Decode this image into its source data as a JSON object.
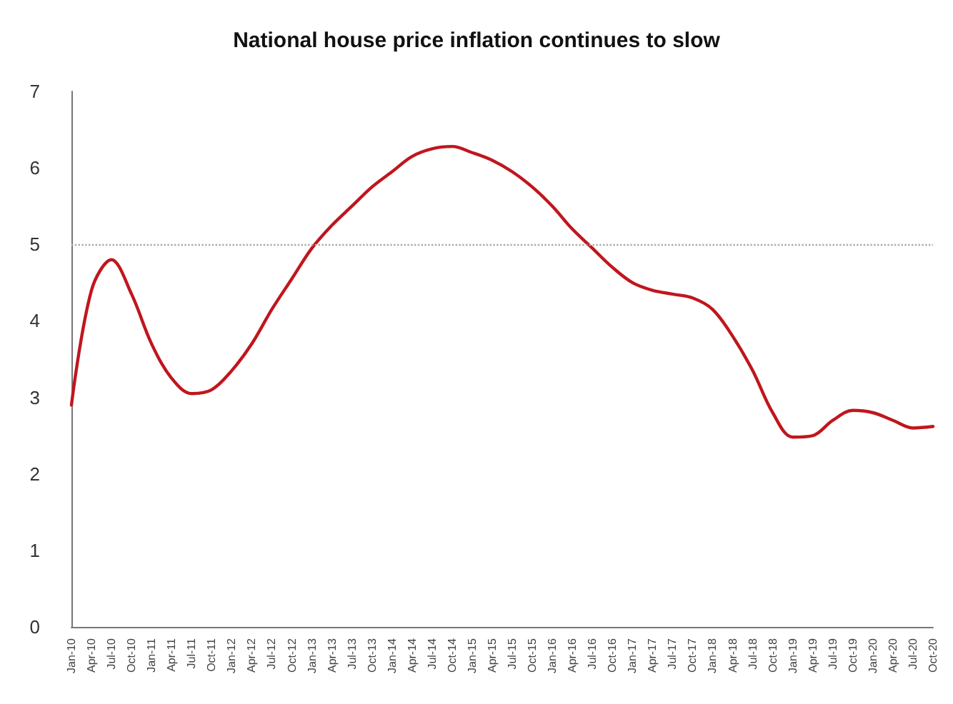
{
  "chart_data": {
    "type": "line",
    "title": "National house price inflation continues to slow",
    "categories": [
      "Jan-10",
      "Apr-10",
      "Jul-10",
      "Oct-10",
      "Jan-11",
      "Apr-11",
      "Jul-11",
      "Oct-11",
      "Jan-12",
      "Apr-12",
      "Jul-12",
      "Oct-12",
      "Jan-13",
      "Apr-13",
      "Jul-13",
      "Oct-13",
      "Jan-14",
      "Apr-14",
      "Jul-14",
      "Oct-14",
      "Jan-15",
      "Apr-15",
      "Jul-15",
      "Oct-15",
      "Jan-16",
      "Apr-16",
      "Jul-16",
      "Oct-16",
      "Jan-17",
      "Apr-17",
      "Jul-17",
      "Oct-17",
      "Jan-18",
      "Apr-18",
      "Jul-18",
      "Oct-18",
      "Jan-19",
      "Apr-19",
      "Jul-19",
      "Oct-19",
      "Jan-20",
      "Apr-20",
      "Jul-20",
      "Oct-20"
    ],
    "series": [
      {
        "color": "#c0161d",
        "values": [
          2.9,
          4.4,
          4.8,
          4.35,
          3.7,
          3.25,
          3.05,
          3.1,
          3.35,
          3.7,
          4.15,
          4.55,
          4.95,
          5.25,
          5.5,
          5.75,
          5.95,
          6.15,
          6.25,
          6.28,
          6.2,
          6.1,
          5.95,
          5.75,
          5.5,
          5.2,
          4.95,
          4.7,
          4.5,
          4.4,
          4.35,
          4.3,
          4.15,
          3.8,
          3.35,
          2.8,
          2.48,
          2.5,
          2.7,
          2.83,
          2.8,
          2.7,
          2.6,
          2.62
        ]
      }
    ],
    "ylim": [
      0,
      7
    ],
    "yticks": [
      0,
      1,
      2,
      3,
      4,
      5,
      6,
      7
    ],
    "ref_lines": [
      {
        "axis": "y",
        "value": 5,
        "color": "#aaaaaa",
        "line_style": "dotted"
      }
    ],
    "grid": false,
    "marker": "none",
    "line_style": "solid"
  }
}
